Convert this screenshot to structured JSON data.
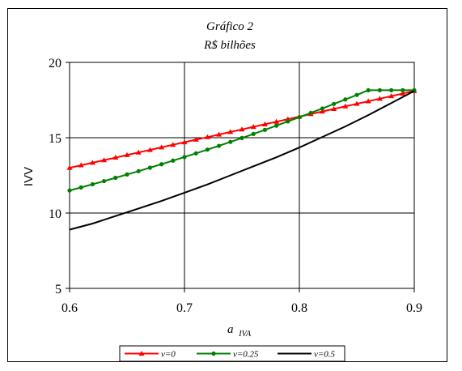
{
  "chart_data": {
    "type": "line",
    "title": "Gráfico 2",
    "subtitle": "R$ bilhões",
    "ylabel": "IVV",
    "xlabel_main": "a",
    "xlabel_sub": "IVA",
    "xlim": [
      0.6,
      0.9
    ],
    "ylim": [
      5,
      20
    ],
    "x_ticks": [
      "0.6",
      "0.7",
      "0.8",
      "0.9"
    ],
    "y_ticks": [
      "5",
      "10",
      "15",
      "20"
    ],
    "grid": true,
    "legend_position": "bottom",
    "series": [
      {
        "name": "v=0",
        "color": "#ff0000",
        "marker": "triangle",
        "x": [
          0.6,
          0.61,
          0.62,
          0.63,
          0.64,
          0.65,
          0.66,
          0.67,
          0.68,
          0.69,
          0.7,
          0.71,
          0.72,
          0.73,
          0.74,
          0.75,
          0.76,
          0.77,
          0.78,
          0.79,
          0.8,
          0.81,
          0.82,
          0.83,
          0.84,
          0.85,
          0.86,
          0.87,
          0.88,
          0.89,
          0.9
        ],
        "values": [
          13.0,
          13.17,
          13.34,
          13.51,
          13.68,
          13.85,
          14.02,
          14.19,
          14.36,
          14.53,
          14.7,
          14.87,
          15.04,
          15.21,
          15.38,
          15.55,
          15.72,
          15.89,
          16.06,
          16.23,
          16.4,
          16.57,
          16.74,
          16.91,
          17.08,
          17.25,
          17.42,
          17.59,
          17.76,
          17.93,
          18.1
        ]
      },
      {
        "name": "v=0.25",
        "color": "#008000",
        "marker": "circle",
        "x": [
          0.6,
          0.61,
          0.62,
          0.63,
          0.64,
          0.65,
          0.66,
          0.67,
          0.68,
          0.69,
          0.7,
          0.71,
          0.72,
          0.73,
          0.74,
          0.75,
          0.76,
          0.77,
          0.78,
          0.79,
          0.8,
          0.81,
          0.82,
          0.83,
          0.84,
          0.85,
          0.86,
          0.87,
          0.88,
          0.89,
          0.9
        ],
        "values": [
          11.5,
          11.7,
          11.91,
          12.12,
          12.34,
          12.56,
          12.78,
          13.01,
          13.24,
          13.48,
          13.72,
          13.96,
          14.21,
          14.46,
          14.72,
          14.98,
          15.25,
          15.52,
          15.8,
          16.08,
          16.36,
          16.65,
          16.94,
          17.24,
          17.54,
          17.84,
          18.15,
          18.15,
          18.15,
          18.15,
          18.15
        ]
      },
      {
        "name": "v=0.5",
        "color": "#000000",
        "marker": "none",
        "x": [
          0.6,
          0.62,
          0.64,
          0.66,
          0.68,
          0.7,
          0.72,
          0.74,
          0.76,
          0.78,
          0.8,
          0.82,
          0.84,
          0.86,
          0.88,
          0.9
        ],
        "values": [
          8.9,
          9.3,
          9.8,
          10.3,
          10.8,
          11.35,
          11.9,
          12.5,
          13.1,
          13.7,
          14.35,
          15.05,
          15.75,
          16.5,
          17.3,
          18.1
        ]
      }
    ]
  }
}
